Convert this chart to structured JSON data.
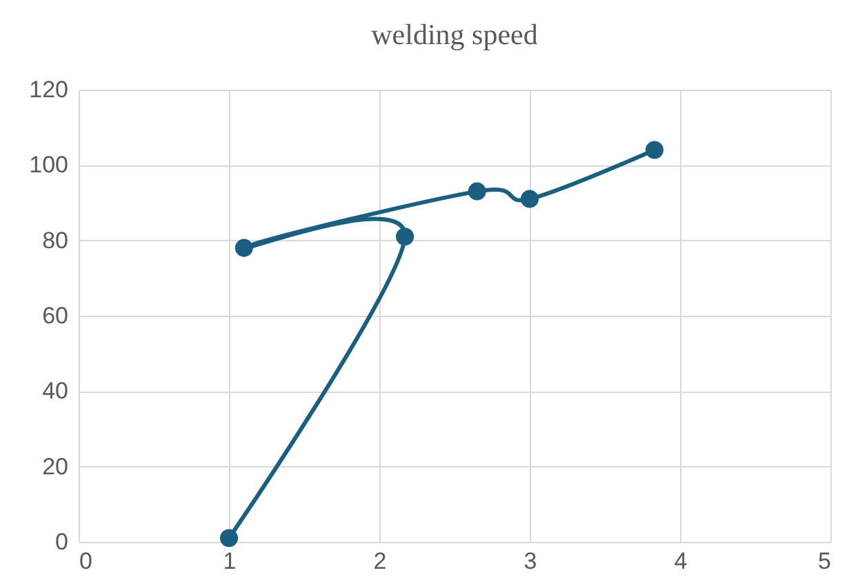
{
  "chart_data": {
    "type": "line",
    "title": "welding speed",
    "series": [
      {
        "color": "#1b5e80",
        "x": [
          1,
          2.17,
          1.1,
          2.65,
          3,
          3.83
        ],
        "values": [
          1,
          81,
          78,
          93,
          91,
          104
        ]
      }
    ],
    "xlim": [
      0,
      5
    ],
    "xticks": [
      0,
      1,
      2,
      3,
      4,
      5
    ],
    "ylim": [
      0,
      120
    ],
    "yticks": [
      0,
      20,
      40,
      60,
      80,
      100,
      120
    ],
    "grid": true,
    "marker": "circle",
    "line_style": "solid"
  }
}
